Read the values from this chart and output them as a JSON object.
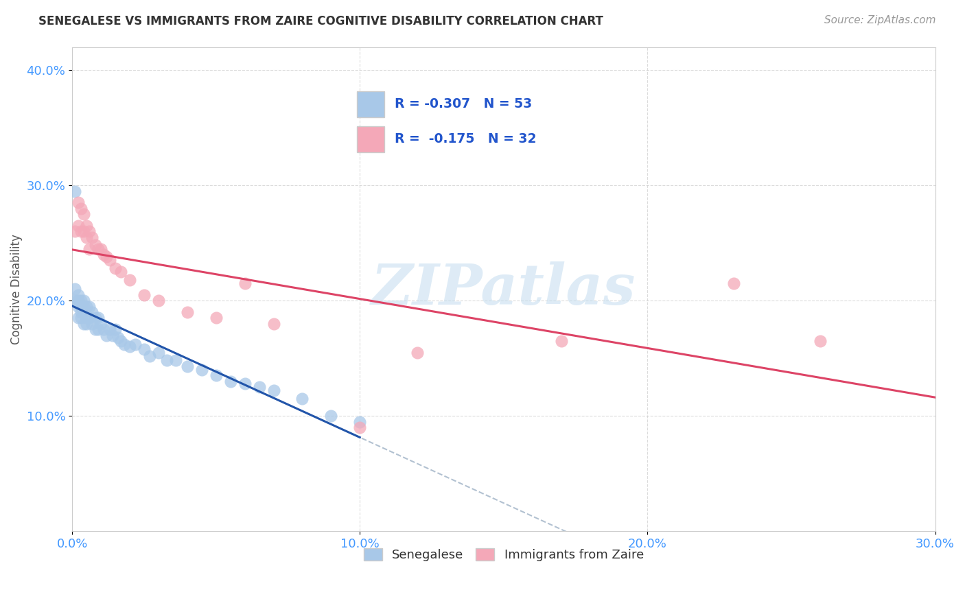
{
  "title": "SENEGALESE VS IMMIGRANTS FROM ZAIRE COGNITIVE DISABILITY CORRELATION CHART",
  "source_text": "Source: ZipAtlas.com",
  "ylabel": "Cognitive Disability",
  "xlabel": "",
  "xlim": [
    0.0,
    0.3
  ],
  "ylim": [
    0.0,
    0.42
  ],
  "xtick_labels": [
    "0.0%",
    "10.0%",
    "20.0%",
    "30.0%"
  ],
  "xtick_values": [
    0.0,
    0.1,
    0.2,
    0.3
  ],
  "ytick_labels": [
    "10.0%",
    "20.0%",
    "30.0%",
    "40.0%"
  ],
  "ytick_values": [
    0.1,
    0.2,
    0.3,
    0.4
  ],
  "legend_labels": [
    "Senegalese",
    "Immigrants from Zaire"
  ],
  "R_senegalese": -0.307,
  "N_senegalese": 53,
  "R_zaire": -0.175,
  "N_zaire": 32,
  "senegalese_color": "#a8c8e8",
  "zaire_color": "#f4a8b8",
  "trendline_senegalese_color": "#2255aa",
  "trendline_zaire_color": "#dd4466",
  "dashed_color": "#aabbcc",
  "background_color": "#ffffff",
  "grid_color": "#cccccc",
  "watermark_text": "ZIPatlas",
  "senegalese_x": [
    0.001,
    0.001,
    0.001,
    0.002,
    0.002,
    0.002,
    0.002,
    0.002,
    0.003,
    0.003,
    0.003,
    0.003,
    0.004,
    0.004,
    0.004,
    0.004,
    0.005,
    0.005,
    0.005,
    0.006,
    0.006,
    0.007,
    0.007,
    0.008,
    0.008,
    0.009,
    0.009,
    0.01,
    0.011,
    0.012,
    0.013,
    0.014,
    0.015,
    0.016,
    0.017,
    0.018,
    0.02,
    0.022,
    0.025,
    0.027,
    0.03,
    0.033,
    0.036,
    0.04,
    0.045,
    0.05,
    0.055,
    0.06,
    0.065,
    0.07,
    0.08,
    0.09,
    0.1
  ],
  "senegalese_y": [
    0.295,
    0.21,
    0.2,
    0.205,
    0.2,
    0.2,
    0.195,
    0.185,
    0.2,
    0.195,
    0.19,
    0.185,
    0.2,
    0.195,
    0.19,
    0.18,
    0.195,
    0.185,
    0.18,
    0.195,
    0.185,
    0.19,
    0.18,
    0.185,
    0.175,
    0.185,
    0.175,
    0.18,
    0.175,
    0.17,
    0.175,
    0.17,
    0.175,
    0.168,
    0.165,
    0.162,
    0.16,
    0.162,
    0.158,
    0.152,
    0.155,
    0.148,
    0.148,
    0.143,
    0.14,
    0.135,
    0.13,
    0.128,
    0.125,
    0.122,
    0.115,
    0.1,
    0.095
  ],
  "zaire_x": [
    0.001,
    0.002,
    0.002,
    0.003,
    0.003,
    0.004,
    0.004,
    0.005,
    0.005,
    0.006,
    0.006,
    0.007,
    0.008,
    0.009,
    0.01,
    0.011,
    0.012,
    0.013,
    0.015,
    0.017,
    0.02,
    0.025,
    0.03,
    0.04,
    0.05,
    0.06,
    0.07,
    0.1,
    0.12,
    0.17,
    0.23,
    0.26
  ],
  "zaire_y": [
    0.26,
    0.285,
    0.265,
    0.28,
    0.26,
    0.275,
    0.26,
    0.265,
    0.255,
    0.26,
    0.245,
    0.255,
    0.248,
    0.245,
    0.245,
    0.24,
    0.238,
    0.235,
    0.228,
    0.225,
    0.218,
    0.205,
    0.2,
    0.19,
    0.185,
    0.215,
    0.18,
    0.09,
    0.155,
    0.165,
    0.215,
    0.165
  ]
}
